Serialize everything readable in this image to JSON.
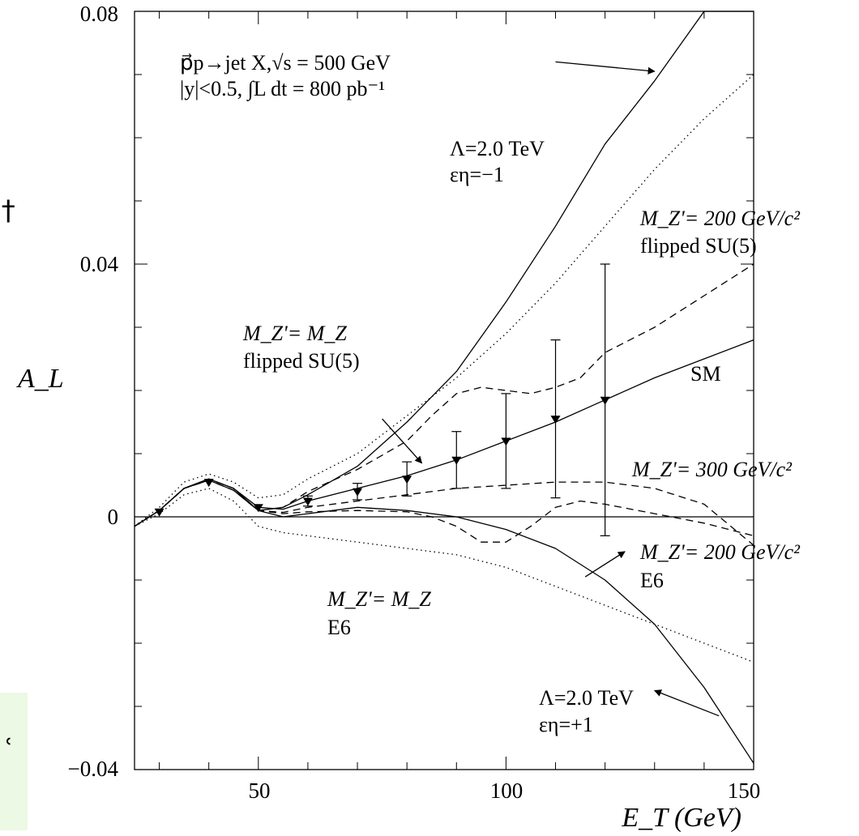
{
  "chart_data": {
    "type": "line",
    "xlabel": "E_T (GeV)",
    "ylabel": "A_L",
    "xlim": [
      25,
      150
    ],
    "ylim": [
      -0.04,
      0.08
    ],
    "x_ticks": [
      50,
      100,
      150
    ],
    "y_ticks": [
      -0.04,
      0,
      0.04,
      0.08
    ],
    "tick_labels": {
      "x": [
        "50",
        "100",
        "150"
      ],
      "y": [
        "−0.04",
        "0",
        "0.04",
        "0.08"
      ]
    },
    "annotation_header": {
      "line1": "p⃗p→jet X,√s = 500 GeV",
      "line2": "|y|<0.5, ∫L dt = 800 pb⁻¹"
    },
    "curve_labels": {
      "lambda_minus": [
        "Λ=2.0 TeV",
        "εη=−1"
      ],
      "lambda_plus": [
        "Λ=2.0 TeV",
        "εη=+1"
      ],
      "mz200_flipped": [
        "M_Z'= 200 GeV/c²",
        "flipped SU(5)"
      ],
      "mz_flipped": [
        "M_Z'= M_Z",
        "flipped SU(5)"
      ],
      "sm": [
        "SM"
      ],
      "mz300": [
        "M_Z'= 300 GeV/c²"
      ],
      "mz200_e6": [
        "M_Z'= 200 GeV/c²",
        "E6"
      ],
      "mz_e6": [
        "M_Z'= M_Z",
        "E6"
      ]
    },
    "series": [
      {
        "style": "solid",
        "x": [
          25,
          30,
          35,
          40,
          45,
          50,
          55,
          60,
          70,
          80,
          90,
          100,
          110,
          120,
          130,
          140,
          150
        ],
        "y": [
          -0.0015,
          0.001,
          0.0045,
          0.006,
          0.0045,
          0.001,
          0.0015,
          0.0035,
          0.008,
          0.015,
          0.023,
          0.034,
          0.046,
          0.059,
          0.069,
          0.08,
          0.095
        ]
      },
      {
        "style": "solid",
        "x": [
          25,
          30,
          35,
          40,
          45,
          50,
          55,
          60,
          70,
          80,
          90,
          100,
          110,
          120,
          130,
          140,
          150
        ],
        "y": [
          -0.0015,
          0.001,
          0.0045,
          0.0058,
          0.0042,
          0.001,
          0.0,
          0.0005,
          0.0015,
          0.001,
          0.0,
          -0.002,
          -0.005,
          -0.01,
          -0.017,
          -0.027,
          -0.039
        ]
      },
      {
        "style": "solid",
        "x": [
          25,
          30,
          35,
          40,
          45,
          50,
          55,
          60,
          70,
          80,
          90,
          100,
          110,
          120,
          130,
          140,
          150
        ],
        "y": [
          -0.0015,
          0.001,
          0.0045,
          0.006,
          0.0045,
          0.0015,
          0.0012,
          0.0025,
          0.0045,
          0.0065,
          0.009,
          0.012,
          0.015,
          0.0185,
          0.022,
          0.025,
          0.028
        ]
      },
      {
        "style": "dotted",
        "x": [
          25,
          30,
          35,
          40,
          45,
          50,
          55,
          60,
          70,
          80,
          90,
          100,
          110,
          120,
          130,
          140,
          150
        ],
        "y": [
          -0.0015,
          0.0015,
          0.0055,
          0.0068,
          0.0055,
          0.003,
          0.0035,
          0.006,
          0.01,
          0.016,
          0.022,
          0.029,
          0.037,
          0.046,
          0.055,
          0.063,
          0.07
        ]
      },
      {
        "style": "dotted",
        "x": [
          25,
          30,
          35,
          40,
          45,
          50,
          55,
          60,
          70,
          80,
          90,
          100,
          110,
          120,
          130,
          140,
          150
        ],
        "y": [
          -0.0015,
          0.0005,
          0.0035,
          0.0045,
          0.0025,
          -0.0015,
          -0.0025,
          -0.003,
          -0.004,
          -0.005,
          -0.006,
          -0.008,
          -0.011,
          -0.014,
          -0.017,
          -0.02,
          -0.023
        ]
      },
      {
        "style": "dashed",
        "x": [
          25,
          30,
          35,
          40,
          45,
          50,
          55,
          60,
          70,
          80,
          85,
          90,
          95,
          100,
          105,
          110,
          115,
          120,
          130,
          140,
          150
        ],
        "y": [
          -0.0015,
          0.001,
          0.0045,
          0.006,
          0.0045,
          0.001,
          0.0015,
          0.004,
          0.0075,
          0.012,
          0.016,
          0.0195,
          0.0205,
          0.02,
          0.0195,
          0.0205,
          0.022,
          0.026,
          0.03,
          0.035,
          0.04
        ]
      },
      {
        "style": "dashed",
        "x": [
          25,
          30,
          35,
          40,
          45,
          50,
          55,
          60,
          70,
          80,
          90,
          100,
          110,
          120,
          130,
          140,
          150
        ],
        "y": [
          -0.0015,
          0.001,
          0.0045,
          0.0058,
          0.0042,
          0.001,
          0.0007,
          0.0015,
          0.0025,
          0.0035,
          0.0045,
          0.005,
          0.0055,
          0.0055,
          0.0045,
          0.002,
          -0.0045
        ]
      },
      {
        "style": "dashed",
        "x": [
          25,
          30,
          35,
          40,
          45,
          50,
          55,
          60,
          70,
          80,
          85,
          90,
          95,
          100,
          105,
          110,
          115,
          120,
          130,
          140,
          150
        ],
        "y": [
          -0.0015,
          0.001,
          0.0045,
          0.0058,
          0.0042,
          0.001,
          0.0005,
          0.0008,
          0.001,
          0.0008,
          0.0,
          -0.0015,
          -0.004,
          -0.004,
          -0.0015,
          0.0015,
          0.0025,
          0.002,
          0.0005,
          -0.001,
          -0.003
        ]
      }
    ],
    "points": {
      "x": [
        30,
        40,
        50,
        60,
        70,
        80,
        90,
        100,
        110,
        120
      ],
      "y": [
        0.0008,
        0.0055,
        0.0015,
        0.0025,
        0.004,
        0.006,
        0.009,
        0.012,
        0.0155,
        0.0185
      ],
      "yerr": [
        0.0002,
        0.0003,
        0.0005,
        0.0008,
        0.0013,
        0.0027,
        0.0045,
        0.0075,
        0.0125,
        0.0215
      ]
    },
    "arrows": [
      {
        "from": [
          110,
          0.072
        ],
        "to": [
          130,
          0.0705
        ]
      },
      {
        "from": [
          143,
          -0.0315
        ],
        "to": [
          130,
          -0.0275
        ]
      },
      {
        "from": [
          75,
          0.0155
        ],
        "to": [
          83,
          0.0085
        ]
      },
      {
        "from": [
          116,
          -0.0095
        ],
        "to": [
          124,
          -0.0055
        ]
      }
    ]
  },
  "side": {
    "top_glyph": "†",
    "bottom_glyph": "ʿ"
  }
}
